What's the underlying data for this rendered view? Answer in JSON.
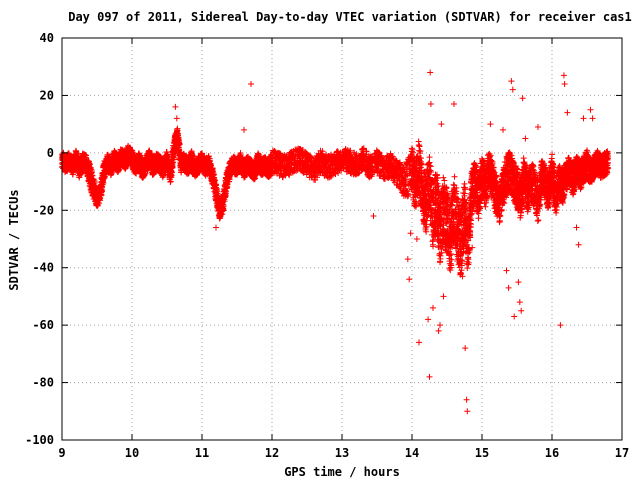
{
  "chart_data": {
    "type": "scatter",
    "title": "Day 097 of 2011, Sidereal Day-to-day VTEC variation (SDTVAR) for receiver cas1",
    "xlabel": "GPS time / hours",
    "ylabel": "SDTVAR / TECUs",
    "xlim": [
      9,
      17
    ],
    "ylim": [
      -100,
      40
    ],
    "xticks": [
      9,
      10,
      11,
      12,
      13,
      14,
      15,
      16,
      17
    ],
    "yticks": [
      -100,
      -80,
      -60,
      -40,
      -20,
      0,
      20,
      40
    ],
    "grid": true,
    "marker": "+",
    "color": "#ff0000",
    "series": [
      {
        "x": [
          9.0,
          9.05,
          9.1,
          9.15,
          9.2,
          9.25,
          9.3,
          9.35,
          9.4,
          9.45,
          9.5,
          9.55,
          9.6,
          9.65,
          9.7,
          9.75,
          9.8,
          9.85,
          9.9,
          9.95,
          10.0,
          10.05,
          10.1,
          10.15,
          10.2,
          10.25,
          10.3,
          10.35,
          10.4,
          10.45,
          10.5,
          10.55,
          10.6,
          10.65,
          10.7,
          10.75,
          10.8,
          10.85,
          10.9,
          10.95,
          11.0,
          11.05,
          11.1,
          11.15,
          11.2,
          11.25,
          11.3,
          11.35,
          11.4,
          11.45,
          11.5,
          11.55,
          11.6,
          11.65,
          11.7,
          11.75,
          11.8,
          11.85,
          11.9,
          11.95,
          12.0,
          12.1,
          12.2,
          12.3,
          12.4,
          12.5,
          12.6,
          12.7,
          12.8,
          12.9,
          13.0,
          13.1,
          13.2,
          13.3,
          13.4,
          13.5,
          13.6,
          13.7,
          13.8,
          13.9,
          14.0,
          14.05,
          14.1,
          14.15,
          14.2,
          14.25,
          14.3,
          14.35,
          14.4,
          14.45,
          14.5,
          14.55,
          14.6,
          14.65,
          14.7,
          14.75,
          14.8,
          14.85,
          14.9,
          14.95,
          15.0,
          15.05,
          15.1,
          15.15,
          15.2,
          15.25,
          15.3,
          15.35,
          15.4,
          15.45,
          15.5,
          15.55,
          15.6,
          15.65,
          15.7,
          15.75,
          15.8,
          15.85,
          15.9,
          15.95,
          16.0,
          16.05,
          16.1,
          16.15,
          16.2,
          16.25,
          16.3,
          16.35,
          16.4,
          16.45,
          16.5,
          16.55,
          16.6,
          16.65,
          16.7,
          16.75,
          16.8
        ],
        "y": [
          -2,
          -4,
          -3,
          -5,
          -2,
          -6,
          -3,
          -4,
          -8,
          -12,
          -16,
          -14,
          -6,
          -3,
          -5,
          -2,
          -4,
          -1,
          -3,
          0,
          -2,
          -5,
          -3,
          -6,
          -4,
          -2,
          -5,
          -3,
          -4,
          -6,
          -2,
          -8,
          2,
          6,
          -4,
          -3,
          -5,
          -2,
          -6,
          -4,
          -3,
          -5,
          -4,
          -8,
          -14,
          -20,
          -18,
          -10,
          -6,
          -4,
          -5,
          -3,
          -6,
          -4,
          -5,
          -7,
          -3,
          -5,
          -4,
          -6,
          -3,
          -4,
          -5,
          -3,
          -2,
          -4,
          -6,
          -3,
          -5,
          -4,
          -2,
          -3,
          -4,
          -2,
          -5,
          -3,
          -6,
          -4,
          -8,
          -10,
          -6,
          -12,
          -4,
          -14,
          -18,
          -10,
          -22,
          -16,
          -28,
          -20,
          -24,
          -30,
          -18,
          -26,
          -32,
          -20,
          -34,
          -14,
          -10,
          -16,
          -8,
          -12,
          -6,
          -10,
          -14,
          -18,
          -12,
          -8,
          -6,
          -10,
          -12,
          -16,
          -8,
          -14,
          -10,
          -12,
          -18,
          -8,
          -10,
          -14,
          -6,
          -16,
          -10,
          -12,
          -8,
          -6,
          -10,
          -5,
          -8,
          -6,
          -4,
          -7,
          -5,
          -3,
          -5,
          -4,
          -3
        ],
        "spread": [
          3,
          3,
          3,
          3,
          3,
          3,
          3,
          3,
          4,
          4,
          3,
          3,
          3,
          3,
          3,
          3,
          3,
          3,
          3,
          3,
          3,
          3,
          3,
          3,
          3,
          3,
          3,
          3,
          3,
          3,
          3,
          3,
          3,
          3,
          3,
          3,
          3,
          3,
          3,
          3,
          3,
          3,
          3,
          3,
          3,
          3,
          3,
          3,
          3,
          3,
          3,
          3,
          3,
          3,
          3,
          3,
          3,
          3,
          3,
          3,
          4,
          4,
          4,
          4,
          4,
          4,
          4,
          4,
          4,
          4,
          4,
          4,
          4,
          4,
          4,
          4,
          4,
          4,
          5,
          6,
          8,
          8,
          9,
          9,
          10,
          10,
          11,
          11,
          11,
          12,
          12,
          12,
          12,
          12,
          12,
          11,
          10,
          8,
          7,
          7,
          7,
          7,
          7,
          7,
          7,
          7,
          7,
          7,
          7,
          7,
          7,
          7,
          7,
          7,
          7,
          7,
          7,
          6,
          6,
          6,
          6,
          6,
          6,
          6,
          6,
          5,
          5,
          5,
          5,
          5,
          5,
          4,
          4,
          4,
          4,
          4,
          4
        ],
        "outliers": [
          {
            "x": 10.62,
            "y": 16
          },
          {
            "x": 10.64,
            "y": 12
          },
          {
            "x": 11.2,
            "y": -26
          },
          {
            "x": 11.6,
            "y": 8
          },
          {
            "x": 11.7,
            "y": 24
          },
          {
            "x": 13.45,
            "y": -22
          },
          {
            "x": 13.94,
            "y": -37
          },
          {
            "x": 13.96,
            "y": -44
          },
          {
            "x": 13.98,
            "y": -28
          },
          {
            "x": 14.07,
            "y": -30
          },
          {
            "x": 14.1,
            "y": -66
          },
          {
            "x": 14.23,
            "y": -58
          },
          {
            "x": 14.25,
            "y": -78
          },
          {
            "x": 14.26,
            "y": 28
          },
          {
            "x": 14.27,
            "y": 17
          },
          {
            "x": 14.3,
            "y": -54
          },
          {
            "x": 14.38,
            "y": -62
          },
          {
            "x": 14.4,
            "y": -60
          },
          {
            "x": 14.42,
            "y": 10
          },
          {
            "x": 14.45,
            "y": -50
          },
          {
            "x": 14.6,
            "y": 17
          },
          {
            "x": 14.72,
            "y": -43
          },
          {
            "x": 14.76,
            "y": -68
          },
          {
            "x": 14.78,
            "y": -86
          },
          {
            "x": 14.79,
            "y": -90
          },
          {
            "x": 14.86,
            "y": -33
          },
          {
            "x": 15.12,
            "y": 10
          },
          {
            "x": 15.3,
            "y": 8
          },
          {
            "x": 15.35,
            "y": -41
          },
          {
            "x": 15.38,
            "y": -47
          },
          {
            "x": 15.42,
            "y": 25
          },
          {
            "x": 15.44,
            "y": 22
          },
          {
            "x": 15.46,
            "y": -57
          },
          {
            "x": 15.52,
            "y": -45
          },
          {
            "x": 15.54,
            "y": -52
          },
          {
            "x": 15.56,
            "y": -55
          },
          {
            "x": 15.58,
            "y": 19
          },
          {
            "x": 15.62,
            "y": 5
          },
          {
            "x": 15.8,
            "y": 9
          },
          {
            "x": 16.12,
            "y": -60
          },
          {
            "x": 16.17,
            "y": 27
          },
          {
            "x": 16.18,
            "y": 24
          },
          {
            "x": 16.22,
            "y": 14
          },
          {
            "x": 16.35,
            "y": -26
          },
          {
            "x": 16.38,
            "y": -32
          },
          {
            "x": 16.45,
            "y": 12
          },
          {
            "x": 16.55,
            "y": 15
          },
          {
            "x": 16.58,
            "y": 12
          }
        ]
      }
    ]
  }
}
